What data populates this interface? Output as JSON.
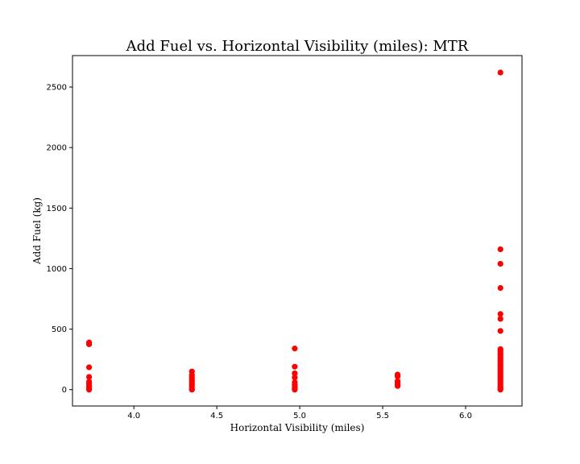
{
  "chart_data": {
    "type": "scatter",
    "title": "Add Fuel vs. Horizontal Visibility (miles): MTR",
    "xlabel": "Horizontal Visibility (miles)",
    "ylabel": "Add Fuel (kg)",
    "xlim": [
      3.63,
      6.34
    ],
    "ylim": [
      -135,
      2760
    ],
    "xticks": [
      4.0,
      4.5,
      5.0,
      5.5,
      6.0
    ],
    "xtick_labels": [
      "4.0",
      "4.5",
      "5.0",
      "5.5",
      "6.0"
    ],
    "yticks": [
      0,
      500,
      1000,
      1500,
      2000,
      2500
    ],
    "ytick_labels": [
      "0",
      "500",
      "1000",
      "1500",
      "2000",
      "2500"
    ],
    "grid": false,
    "marker_color": "#ff0000",
    "series": [
      {
        "points": [
          [
            3.73,
            390
          ],
          [
            3.73,
            375
          ],
          [
            3.73,
            185
          ],
          [
            3.73,
            105
          ],
          [
            3.73,
            65
          ],
          [
            3.73,
            50
          ],
          [
            3.73,
            30
          ],
          [
            3.73,
            15
          ],
          [
            3.73,
            5
          ],
          [
            3.73,
            0
          ],
          [
            4.35,
            150
          ],
          [
            4.35,
            120
          ],
          [
            4.35,
            100
          ],
          [
            4.35,
            85
          ],
          [
            4.35,
            70
          ],
          [
            4.35,
            55
          ],
          [
            4.35,
            40
          ],
          [
            4.35,
            25
          ],
          [
            4.35,
            5
          ],
          [
            4.35,
            0
          ],
          [
            4.97,
            340
          ],
          [
            4.97,
            190
          ],
          [
            4.97,
            135
          ],
          [
            4.97,
            100
          ],
          [
            4.97,
            60
          ],
          [
            4.97,
            40
          ],
          [
            4.97,
            25
          ],
          [
            4.97,
            10
          ],
          [
            4.97,
            0
          ],
          [
            5.59,
            125
          ],
          [
            5.59,
            110
          ],
          [
            5.59,
            70
          ],
          [
            5.59,
            55
          ],
          [
            5.59,
            40
          ],
          [
            5.59,
            30
          ],
          [
            6.21,
            2620
          ],
          [
            6.21,
            1160
          ],
          [
            6.21,
            1040
          ],
          [
            6.21,
            840
          ],
          [
            6.21,
            625
          ],
          [
            6.21,
            585
          ],
          [
            6.21,
            485
          ],
          [
            6.21,
            335
          ],
          [
            6.21,
            320
          ],
          [
            6.21,
            305
          ],
          [
            6.21,
            290
          ],
          [
            6.21,
            275
          ],
          [
            6.21,
            260
          ],
          [
            6.21,
            245
          ],
          [
            6.21,
            230
          ],
          [
            6.21,
            215
          ],
          [
            6.21,
            200
          ],
          [
            6.21,
            185
          ],
          [
            6.21,
            170
          ],
          [
            6.21,
            155
          ],
          [
            6.21,
            140
          ],
          [
            6.21,
            125
          ],
          [
            6.21,
            110
          ],
          [
            6.21,
            95
          ],
          [
            6.21,
            80
          ],
          [
            6.21,
            65
          ],
          [
            6.21,
            50
          ],
          [
            6.21,
            35
          ],
          [
            6.21,
            20
          ],
          [
            6.21,
            10
          ],
          [
            6.21,
            0
          ]
        ]
      }
    ]
  }
}
